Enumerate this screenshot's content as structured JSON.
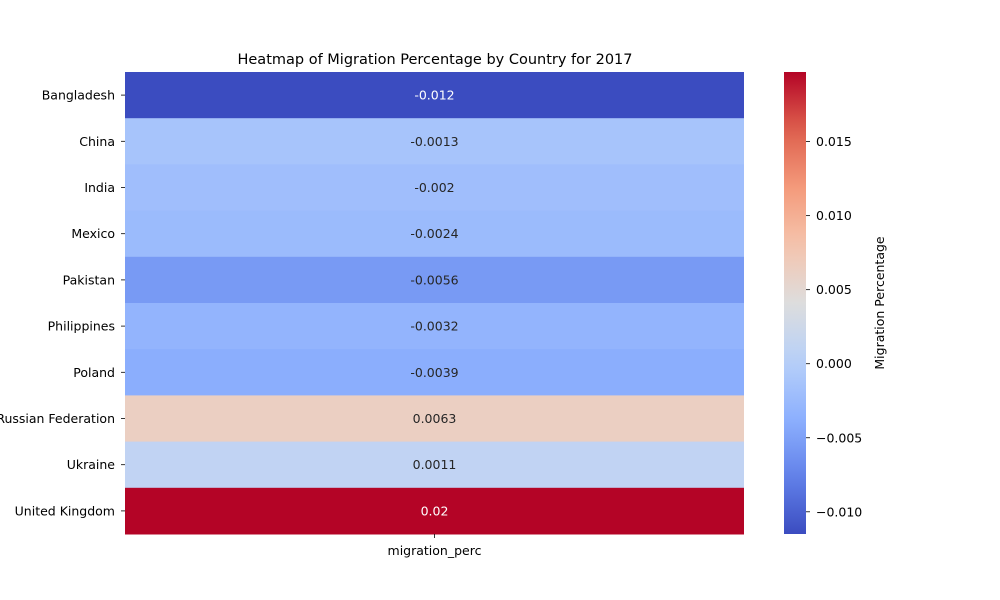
{
  "chart_data": {
    "type": "heatmap",
    "title": "Heatmap of Migration Percentage by Country for 2017",
    "xlabel": "",
    "ylabel": "",
    "columns": [
      "migration_perc"
    ],
    "rows": [
      "Bangladesh",
      "China",
      "India",
      "Mexico",
      "Pakistan",
      "Philippines",
      "Poland",
      "Russian Federation",
      "Ukraine",
      "United Kingdom"
    ],
    "values": [
      -0.012,
      -0.0013,
      -0.002,
      -0.0024,
      -0.0056,
      -0.0032,
      -0.0039,
      0.0063,
      0.0011,
      0.02
    ],
    "cell_labels": [
      "-0.012",
      "-0.0013",
      "-0.002",
      "-0.0024",
      "-0.0056",
      "-0.0032",
      "-0.0039",
      "0.0063",
      "0.0011",
      "0.02"
    ],
    "colormap": "coolwarm",
    "colorbar": {
      "label": "Migration Percentage",
      "range": [
        -0.0115,
        0.0197
      ],
      "ticks": [
        -0.01,
        -0.005,
        0.0,
        0.005,
        0.01,
        0.015
      ],
      "tick_labels": [
        "−0.010",
        "−0.005",
        "0.000",
        "0.005",
        "0.010",
        "0.015"
      ]
    },
    "grid": false,
    "legend": "colorbar right"
  }
}
